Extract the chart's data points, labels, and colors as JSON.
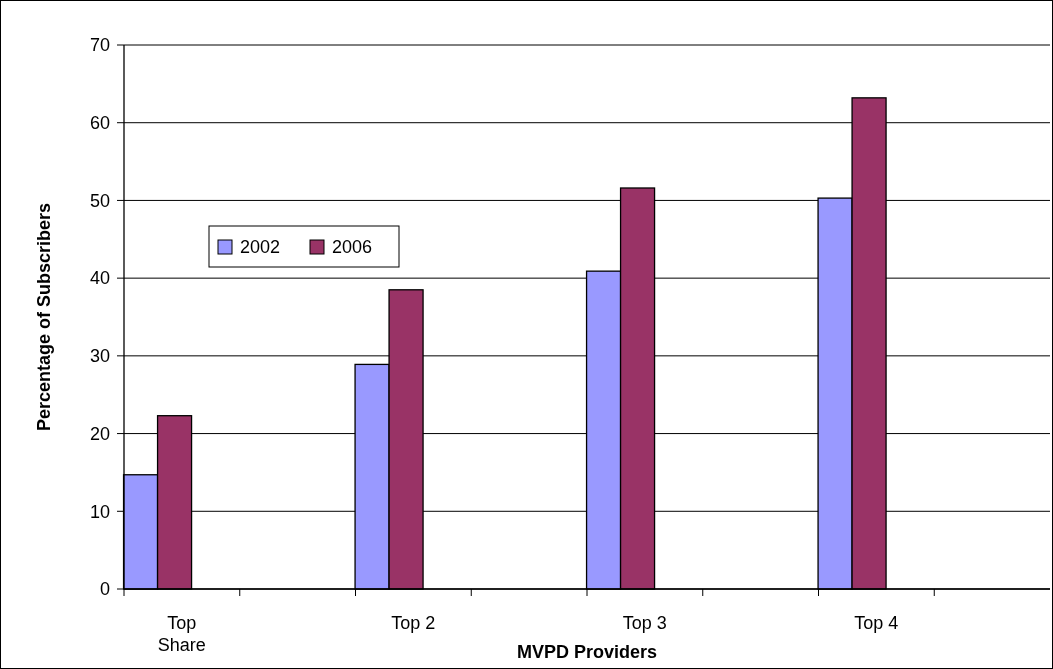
{
  "chart_data": {
    "type": "bar",
    "xlabel": "MVPD Providers",
    "ylabel": "Percentage of Subscribers",
    "categories": [
      "Top Share",
      null,
      "Top 2",
      null,
      "Top 3",
      null,
      "Top 4",
      null
    ],
    "series": [
      {
        "name": "2002",
        "color": "#9999ff",
        "values": [
          14.7,
          null,
          28.9,
          null,
          40.9,
          null,
          50.3,
          null
        ]
      },
      {
        "name": "2006",
        "color": "#993366",
        "values": [
          22.3,
          null,
          38.5,
          null,
          51.6,
          null,
          63.2,
          null
        ]
      }
    ],
    "ylim": [
      0,
      70
    ],
    "yticks": [
      0,
      10,
      20,
      30,
      40,
      50,
      60,
      70
    ],
    "grid": "y",
    "legend": "left"
  }
}
